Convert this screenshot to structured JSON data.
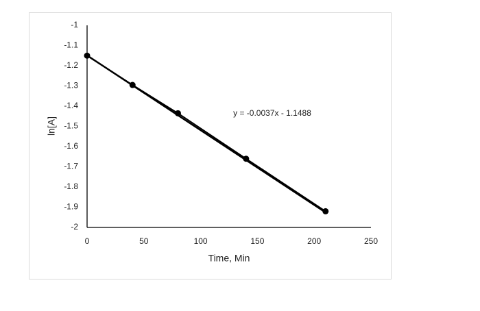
{
  "chart_data": {
    "type": "scatter",
    "x": [
      0,
      40,
      80,
      140,
      210
    ],
    "series": [
      {
        "values": [
          -1.15,
          -1.295,
          -1.435,
          -1.66,
          -1.92
        ],
        "color": "#000000"
      }
    ],
    "xlabel": "Time, Min",
    "ylabel": "ln[A]",
    "xlim": [
      0,
      250
    ],
    "xticks": [
      0,
      50,
      100,
      150,
      200,
      250
    ],
    "ylim": [
      -2,
      -1
    ],
    "yticks": [
      -1,
      -1.1,
      -1.2,
      -1.3,
      -1.4,
      -1.5,
      -1.6,
      -1.7,
      -1.8,
      -1.9,
      -2
    ],
    "grid": false,
    "trendline": {
      "slope": -0.0037,
      "intercept": -1.1488,
      "label": "y = -0.0037x - 1.1488"
    }
  }
}
